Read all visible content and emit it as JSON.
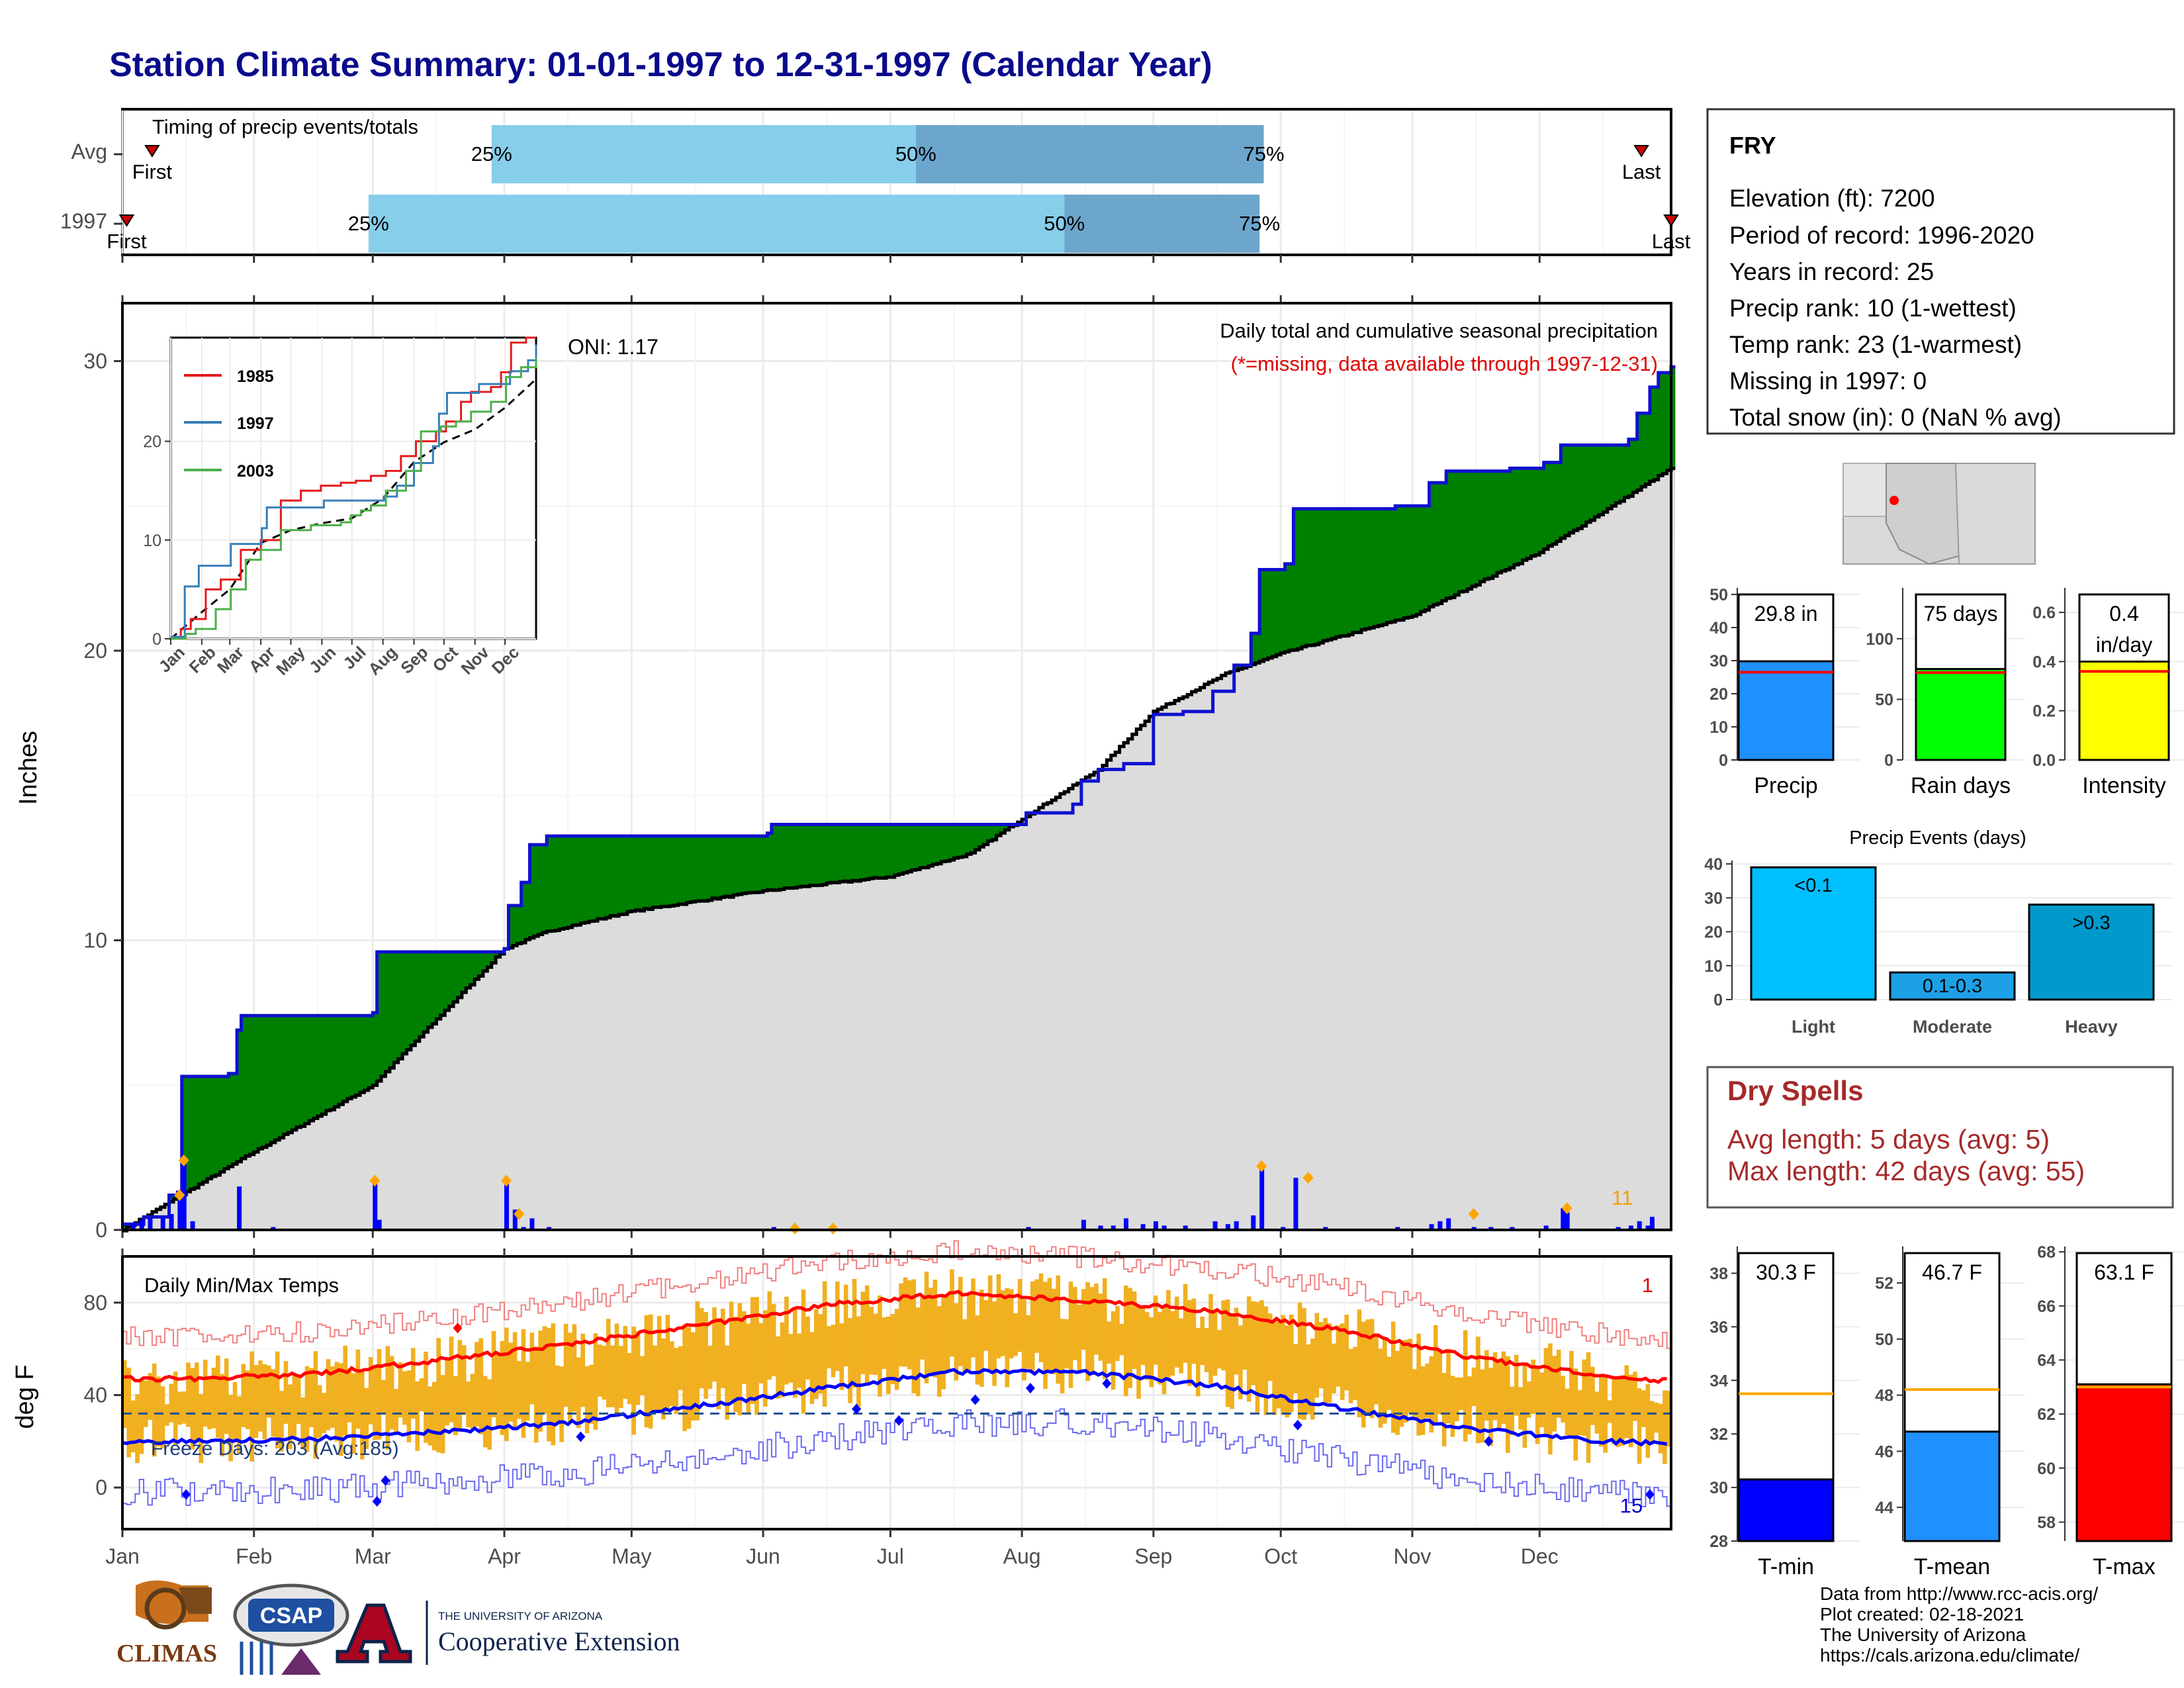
{
  "title": "Station Climate Summary: 01-01-1997 to 12-31-1997 (Calendar Year)",
  "colors": {
    "title": "#0a0a8c",
    "green_fill": "#008000",
    "gray_fill": "#dcdcdc",
    "brown_fill": "#8b4513",
    "precip_bar": "#1e90ff",
    "raindays_bar": "#00ff00",
    "intensity_bar": "#ffff00",
    "light_bar": "#00bfff",
    "moderate_bar": "#1ea0e6",
    "heavy_bar": "#0099cc",
    "tmin_bar": "#0000ff",
    "tmean_bar": "#1e90ff",
    "tmax_bar": "#ff0000",
    "dry_spells": "#a52a2a",
    "temp_range": "#f0b020"
  },
  "timing_panel": {
    "title": "Timing of precip events/totals",
    "rows": [
      {
        "label": "Avg",
        "first_label": "First",
        "last_label": "Last",
        "first_doy": 7,
        "last_doy": 358,
        "q25_doy": 87,
        "q50_doy": 187,
        "q75_doy": 269
      },
      {
        "label": "1997",
        "first_label": "First",
        "last_label": "Last",
        "first_doy": 1,
        "last_doy": 365,
        "q25_doy": 58,
        "q50_doy": 222,
        "q75_doy": 268
      }
    ],
    "q_labels": [
      "25%",
      "50%",
      "75%"
    ]
  },
  "precip_panel": {
    "ylabel": "Inches",
    "yticks": [
      0,
      10,
      20,
      30
    ],
    "ylim": [
      0,
      32
    ],
    "oni": "ONI: 1.17",
    "caption": "Daily total and cumulative seasonal precipitation",
    "missing_note": "(*=missing, data available through 1997-12-31)",
    "days_over_threshold": "11"
  },
  "inset": {
    "yticks": [
      0,
      10,
      20
    ],
    "ylim": [
      0,
      30.5
    ],
    "legend": [
      "1985",
      "1997",
      "2003"
    ],
    "legend_colors": [
      "#e41a1c",
      "#377eb8",
      "#4daf4a"
    ],
    "months": [
      "Jan",
      "Feb",
      "Mar",
      "Apr",
      "May",
      "Jun",
      "Jul",
      "Aug",
      "Sep",
      "Oct",
      "Nov",
      "Dec"
    ]
  },
  "temp_panel": {
    "title": "Daily Min/Max Temps",
    "ylabel": "deg F",
    "yticks": [
      0,
      40,
      80
    ],
    "ylim": [
      -18,
      100
    ],
    "freeze_text": "Freeze Days: 203 (Avg:185)",
    "record_high_count": "1",
    "record_low_count": "15",
    "freeze_line_f": 32
  },
  "x_months": [
    "Jan",
    "Feb",
    "Mar",
    "Apr",
    "May",
    "Jun",
    "Jul",
    "Aug",
    "Sep",
    "Oct",
    "Nov",
    "Dec"
  ],
  "station": {
    "name": "FRY",
    "lines": [
      "Elevation (ft): 7200",
      "Period of record: 1996-2020",
      "Years in record: 25",
      "Precip rank: 10 (1-wettest)",
      "Temp rank: 23 (1-warmest)",
      "Missing in 1997: 0",
      "Total snow (in): 0 (NaN % avg)"
    ]
  },
  "summary_bars": [
    {
      "label": "Precip",
      "value": 29.8,
      "avg": 26.5,
      "value_text": "29.8 in",
      "yticks": [
        0,
        10,
        20,
        30,
        40,
        50
      ],
      "ylim": [
        0,
        52
      ],
      "color_key": "precip_bar"
    },
    {
      "label": "Rain days",
      "value": 75,
      "avg": 72,
      "value_text": "75 days",
      "yticks": [
        0,
        50,
        100
      ],
      "ylim": [
        0,
        142
      ],
      "color_key": "raindays_bar"
    },
    {
      "label": "Intensity",
      "value": 0.4,
      "avg": 0.36,
      "value_text": "0.4",
      "value_text2": "in/day",
      "yticks": [
        0.0,
        0.2,
        0.4,
        0.6
      ],
      "ylim": [
        0,
        0.7
      ],
      "color_key": "intensity_bar"
    }
  ],
  "precip_events": {
    "title": "Precip Events (days)",
    "yticks": [
      0,
      10,
      20,
      30,
      40
    ],
    "ylim": [
      0,
      41
    ],
    "bars": [
      {
        "category": "Light",
        "value": 39,
        "label": "<0.1",
        "color_key": "light_bar"
      },
      {
        "category": "Moderate",
        "value": 8,
        "label": "0.1-0.3",
        "color_key": "moderate_bar"
      },
      {
        "category": "Heavy",
        "value": 28,
        "label": ">0.3",
        "color_key": "heavy_bar"
      }
    ]
  },
  "dry_spells": {
    "title": "Dry Spells",
    "avg_line": "Avg length: 5 days (avg: 5)",
    "max_line": "Max length: 42 days (avg: 55)"
  },
  "temp_bars": [
    {
      "label": "T-min",
      "value": 30.3,
      "avg": 33.5,
      "value_text": "30.3 F",
      "yticks": [
        28,
        30,
        32,
        34,
        36,
        38
      ],
      "ylim": [
        28,
        39
      ],
      "color_key": "tmin_bar"
    },
    {
      "label": "T-mean",
      "value": 46.7,
      "avg": 48.2,
      "value_text": "46.7 F",
      "yticks": [
        44,
        46,
        48,
        50,
        52
      ],
      "ylim": [
        42.8,
        53.3
      ],
      "color_key": "tmean_bar"
    },
    {
      "label": "T-max",
      "value": 63.1,
      "avg": 63.0,
      "value_text": "63.1 F",
      "yticks": [
        58,
        60,
        62,
        64,
        66,
        68
      ],
      "ylim": [
        57.3,
        68.2
      ],
      "color_key": "tmax_bar"
    }
  ],
  "logos": {
    "climas": "CLIMAS",
    "csap": "CSAP",
    "ua_small": "THE UNIVERSITY OF ARIZONA",
    "ua_big": "Cooperative Extension"
  },
  "credits": [
    "Data from http://www.rcc-acis.org/",
    "Plot created: 02-18-2021",
    "The University of Arizona",
    "https://cals.arizona.edu/climate/"
  ],
  "chart_data": [
    {
      "type": "bar",
      "title": "Timing of precip events/totals",
      "categories": [
        "Avg",
        "1997"
      ],
      "series": [
        {
          "name": "25%",
          "values": [
            "Mar-28",
            "Feb-27"
          ]
        },
        {
          "name": "50%",
          "values": [
            "Jul-06",
            "Aug-10"
          ]
        },
        {
          "name": "75%",
          "values": [
            "Sep-26",
            "Sep-25"
          ]
        }
      ]
    },
    {
      "type": "area",
      "title": "Daily total and cumulative seasonal precipitation",
      "ylabel": "Inches",
      "ylim": [
        0,
        32
      ],
      "series": [
        {
          "name": "1997",
          "x": [
            "Jan-01",
            "Jan-10",
            "Jan-13",
            "Jan-20",
            "Feb-28",
            "Mar-31",
            "Apr-05",
            "Apr-15",
            "Jun-01",
            "Jul-31",
            "Aug-15",
            "Sep-01",
            "Sep-25",
            "Oct-05",
            "Nov-15",
            "Dec-01",
            "Dec-20",
            "Dec-31"
          ],
          "values": [
            0.2,
            1.2,
            5.3,
            7.4,
            9.6,
            11.2,
            13.3,
            13.6,
            14.0,
            14.4,
            15.8,
            17.8,
            20.3,
            24.9,
            26.3,
            27.1,
            29.2,
            29.8
          ]
        },
        {
          "name": "",
          "x": [
            "Jan-01",
            "Feb-01",
            "Mar-01",
            "Apr-01",
            "May-01",
            "Jun-01",
            "Jul-01",
            "Aug-01",
            "Sep-01",
            "Oct-01",
            "Nov-01",
            "Dec-01",
            "Dec-31"
          ],
          "values": [
            0.0,
            2.7,
            5.0,
            9.7,
            11.0,
            11.7,
            12.2,
            14.2,
            17.9,
            19.9,
            21.2,
            23.4,
            26.3
          ]
        }
      ]
    },
    {
      "type": "line",
      "title": "Daily Min/Max Temps",
      "ylabel": "deg F",
      "x": [
        "Jan",
        "Feb",
        "Mar",
        "Apr",
        "May",
        "Jun",
        "Jul",
        "Aug",
        "Sep",
        "Oct",
        "Nov",
        "Dec"
      ],
      "series": [
        {
          "name": "",
          "values": [
            47,
            49,
            55,
            62,
            70,
            79,
            84,
            81,
            76,
            68,
            56,
            48
          ]
        },
        {
          "name": "",
          "values": [
            20,
            21,
            24,
            28,
            35,
            43,
            50,
            50,
            44,
            34,
            25,
            20
          ]
        }
      ]
    },
    {
      "type": "bar",
      "title": "Precip Events (days)",
      "categories": [
        "Light",
        "Moderate",
        "Heavy"
      ],
      "values": [
        39,
        8,
        28
      ]
    }
  ]
}
